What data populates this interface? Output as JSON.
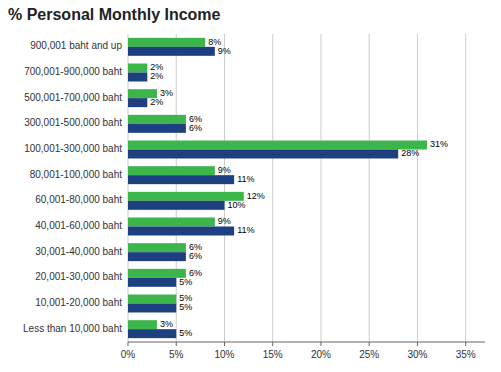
{
  "chart_data": {
    "type": "bar",
    "orientation": "horizontal",
    "title": "% Personal Monthly Income",
    "categories": [
      "900,001 baht and up",
      "700,001-900,000 baht",
      "500,001-700,000 baht",
      "300,001-500,000 baht",
      "100,001-300,000 baht",
      "80,001-100,000 baht",
      "60,001-80,000 baht",
      "40,001-60,000 baht",
      "30,001-40,000 baht",
      "20,001-30,000 baht",
      "10,001-20,000 baht",
      "Less than 10,000 baht"
    ],
    "series": [
      {
        "color": "#3cb54a",
        "values": [
          8,
          2,
          3,
          6,
          31,
          9,
          12,
          9,
          6,
          6,
          5,
          3
        ],
        "value_labels": [
          "8%",
          "2%",
          "3%",
          "6%",
          "31%",
          "9%",
          "12%",
          "9%",
          "6%",
          "6%",
          "5%",
          "3%"
        ]
      },
      {
        "color": "#1f4080",
        "values": [
          9,
          2,
          2,
          6,
          28,
          11,
          10,
          11,
          6,
          5,
          5,
          5
        ],
        "value_labels": [
          "9%",
          "2%",
          "2%",
          "6%",
          "28%",
          "11%",
          "10%",
          "11%",
          "6%",
          "5%",
          "5%",
          "5%"
        ]
      }
    ],
    "xlim": [
      0,
      37
    ],
    "xticks": [
      {
        "value": 0,
        "label": "0%"
      },
      {
        "value": 5,
        "label": "5%"
      },
      {
        "value": 10,
        "label": "10%"
      },
      {
        "value": 15,
        "label": "15%"
      },
      {
        "value": 20,
        "label": "20%"
      },
      {
        "value": 25,
        "label": "25%"
      },
      {
        "value": 30,
        "label": "30%"
      },
      {
        "value": 35,
        "label": "35%"
      }
    ],
    "grid": true,
    "data_labels": true
  }
}
